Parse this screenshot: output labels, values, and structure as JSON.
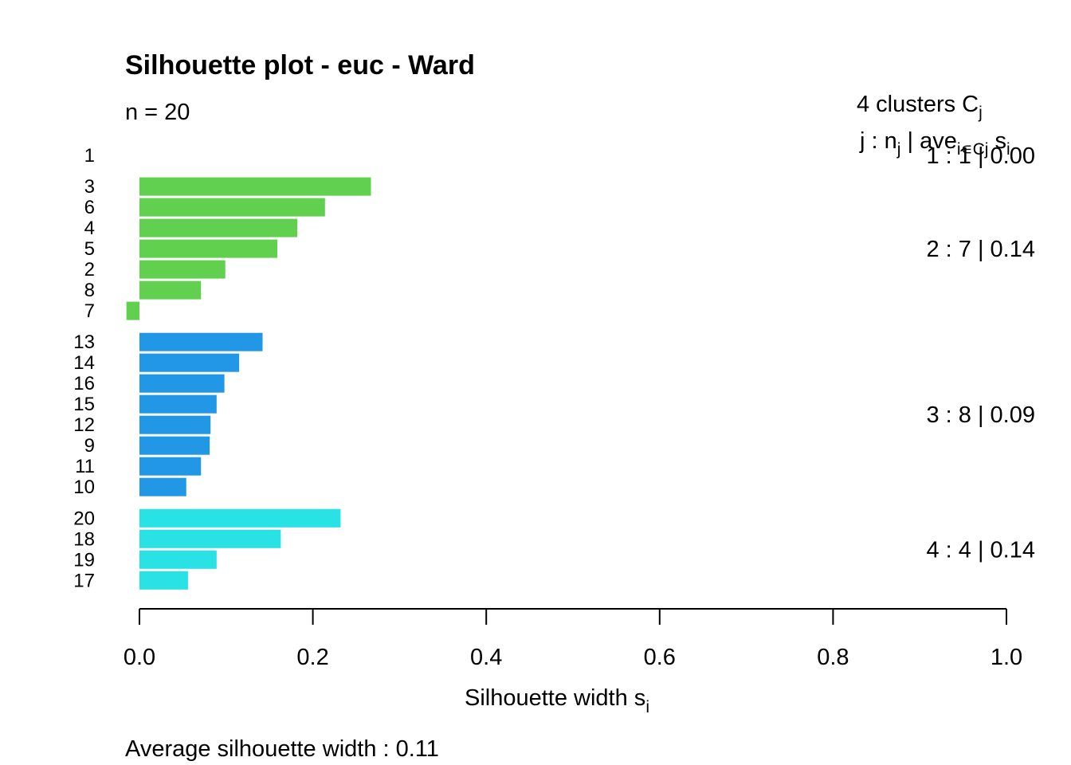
{
  "chart_data": {
    "type": "bar",
    "orientation": "horizontal",
    "title": "Silhouette plot - euc - Ward",
    "subtitle": "n = 20",
    "xlabel_main": "Silhouette width s",
    "xlabel_sub": "i",
    "xlim": [
      0,
      1
    ],
    "x_ticks": [
      "0.0",
      "0.2",
      "0.4",
      "0.6",
      "0.8",
      "1.0"
    ],
    "x_tick_values": [
      0,
      0.2,
      0.4,
      0.6,
      0.8,
      1.0
    ],
    "grid": false,
    "legend_header": {
      "line1_main": "4  clusters  C",
      "line1_sub": "j",
      "line2_a": "j :  n",
      "line2_a_sub": "j",
      "line2_b": " | ave",
      "line2_b_sub": "i∊Cj",
      "line2_c": "  s",
      "line2_c_sub": "i"
    },
    "clusters": [
      {
        "id": 1,
        "n": 1,
        "ave": "0.00",
        "label": "1 :   1  |  0.00",
        "color": "#000000",
        "items": [
          {
            "obs": "1",
            "value": 0.0
          }
        ]
      },
      {
        "id": 2,
        "n": 7,
        "ave": "0.14",
        "label": "2 :   7  |  0.14",
        "color": "#61D04F",
        "items": [
          {
            "obs": "3",
            "value": 0.267
          },
          {
            "obs": "6",
            "value": 0.214
          },
          {
            "obs": "4",
            "value": 0.182
          },
          {
            "obs": "5",
            "value": 0.159
          },
          {
            "obs": "2",
            "value": 0.099
          },
          {
            "obs": "8",
            "value": 0.071
          },
          {
            "obs": "7",
            "value": -0.015
          }
        ]
      },
      {
        "id": 3,
        "n": 8,
        "ave": "0.09",
        "label": "3 :   8  |  0.09",
        "color": "#2297E6",
        "items": [
          {
            "obs": "13",
            "value": 0.142
          },
          {
            "obs": "14",
            "value": 0.115
          },
          {
            "obs": "16",
            "value": 0.098
          },
          {
            "obs": "15",
            "value": 0.089
          },
          {
            "obs": "12",
            "value": 0.082
          },
          {
            "obs": "9",
            "value": 0.081
          },
          {
            "obs": "11",
            "value": 0.071
          },
          {
            "obs": "10",
            "value": 0.054
          }
        ]
      },
      {
        "id": 4,
        "n": 4,
        "ave": "0.14",
        "label": "4 :   4  |  0.14",
        "color": "#28E2E5",
        "items": [
          {
            "obs": "20",
            "value": 0.232
          },
          {
            "obs": "18",
            "value": 0.163
          },
          {
            "obs": "19",
            "value": 0.089
          },
          {
            "obs": "17",
            "value": 0.056
          }
        ]
      }
    ],
    "average": "Average silhouette width :  0.11"
  }
}
